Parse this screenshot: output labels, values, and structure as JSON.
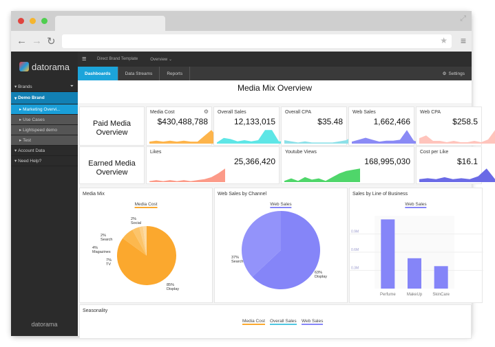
{
  "browser": {
    "icons": [
      "back-arrow-icon",
      "forward-arrow-icon",
      "reload-icon",
      "star-icon",
      "menu-icon",
      "expand-icon"
    ]
  },
  "sidebar": {
    "logo": "datorama",
    "footer": "datorama",
    "items": [
      {
        "label": "Brands",
        "type": "header"
      },
      {
        "label": "Demo Brand",
        "type": "brand"
      },
      {
        "label": "Marketing Overvi...",
        "type": "sel"
      },
      {
        "label": "Use Cases",
        "type": "sub"
      },
      {
        "label": "Lightspeed demo",
        "type": "sub"
      },
      {
        "label": "Test",
        "type": "sub"
      },
      {
        "label": "Account Data",
        "type": "header"
      },
      {
        "label": "Need Help?",
        "type": "header"
      }
    ]
  },
  "topbar": {
    "breadcrumb1": "Direct Brand Template",
    "breadcrumb2": "Overview"
  },
  "tabs": {
    "items": [
      "Dashboards",
      "Data Streams",
      "Reports"
    ],
    "active": 0,
    "settings": "Settings"
  },
  "page_title": "Media Mix Overview",
  "paid": {
    "title": "Paid Media Overview",
    "kpis": [
      {
        "label": "Media Cost",
        "value": "$430,488,788",
        "color": "#fdb44b",
        "spark": [
          2,
          3,
          2,
          3,
          2,
          3,
          2,
          2,
          8,
          14,
          6,
          12
        ]
      },
      {
        "label": "Overall Sales",
        "value": "12,133,015",
        "color": "#5ee6e6",
        "spark": [
          1,
          5,
          4,
          2,
          3,
          2,
          3,
          12,
          12,
          2,
          2,
          2
        ]
      },
      {
        "label": "Overall CPA",
        "value": "$35.48",
        "color": "#8ce0e8",
        "spark": [
          3,
          2,
          1,
          2,
          1,
          1,
          1,
          1,
          2,
          3,
          7,
          12
        ]
      },
      {
        "label": "Web Sales",
        "value": "1,662,466",
        "color": "#8a8af5",
        "spark": [
          2,
          4,
          6,
          4,
          2,
          3,
          3,
          4,
          14,
          3,
          1,
          5
        ]
      },
      {
        "label": "Web CPA",
        "value": "$258.5",
        "color": "#ffc4bc",
        "spark": [
          4,
          6,
          2,
          2,
          1,
          2,
          1,
          1,
          2,
          1,
          3,
          10
        ]
      }
    ]
  },
  "earned": {
    "title": "Earned Media Overview",
    "kpis": [
      {
        "label": "Likes",
        "value": "25,366,420",
        "color": "#fc9a88",
        "spark": [
          1,
          2,
          1,
          2,
          1,
          2,
          1,
          2,
          3,
          5,
          9,
          14
        ]
      },
      {
        "label": "Youtube Views",
        "value": "168,995,030",
        "color": "#4fd66a",
        "spark": [
          1,
          3,
          1,
          4,
          2,
          3,
          1,
          4,
          7,
          9,
          10,
          11
        ]
      },
      {
        "label": "Cost per Like",
        "value": "$16.1",
        "color": "#6a6ae6",
        "spark": [
          3,
          4,
          3,
          5,
          3,
          4,
          3,
          6,
          14,
          3
        ]
      }
    ]
  },
  "chart_data": [
    {
      "type": "pie",
      "title": "Media Mix",
      "legend": "Media Cost",
      "color": "#fba82e",
      "slices": [
        {
          "label": "Display",
          "value": 85
        },
        {
          "label": "TV",
          "value": 7
        },
        {
          "label": "Magazines",
          "value": 4
        },
        {
          "label": "Search",
          "value": 2
        },
        {
          "label": "Social",
          "value": 2
        }
      ]
    },
    {
      "type": "pie",
      "title": "Web Sales by Channel",
      "legend": "Web Sales",
      "color": "#8585f8",
      "slices": [
        {
          "label": "Display",
          "value": 63
        },
        {
          "label": "Search",
          "value": 37
        }
      ]
    },
    {
      "type": "bar",
      "title": "Sales by Line of Business",
      "legend": "Web Sales",
      "color": "#8585f8",
      "categories": [
        "Perfume",
        "MakeUp",
        "SkinCare"
      ],
      "values": [
        1.14,
        0.5,
        0.37
      ],
      "yticks": [
        "0.3M",
        "0.6M",
        "0.9M"
      ],
      "ylim": [
        0,
        1.2
      ]
    },
    {
      "type": "line",
      "title": "Seasonality",
      "legend": [
        {
          "name": "Media Cost",
          "color": "#fba82e"
        },
        {
          "name": "Overall Sales",
          "color": "#4fc6e0"
        },
        {
          "name": "Web Sales",
          "color": "#8585f8"
        }
      ]
    }
  ]
}
